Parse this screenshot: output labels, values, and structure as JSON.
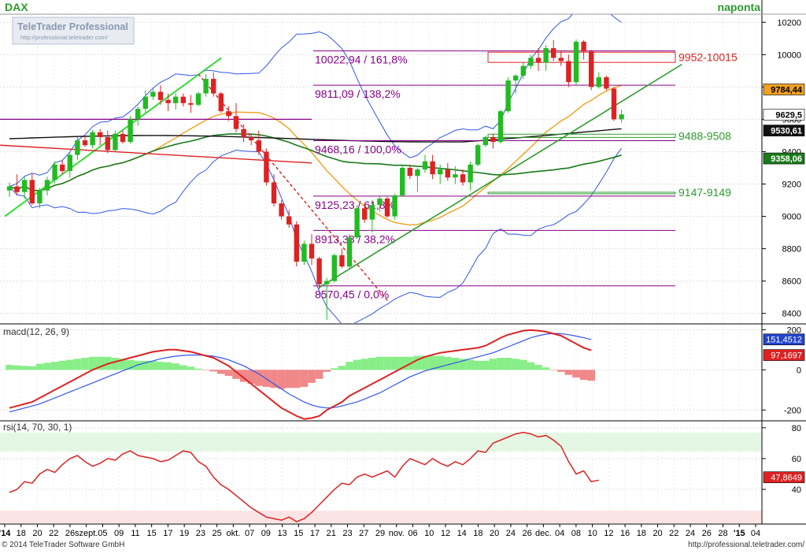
{
  "header": {
    "symbol": "DAX",
    "period": "naponta",
    "logo_brand": "TeleTrader Professional",
    "logo_url": "http://professional.teletrader.com/"
  },
  "footer": {
    "copyright": "© 2014 TeleTrader Software GmbH",
    "url": "http://professional.teletrader.com/"
  },
  "colors": {
    "candle_up": "#22bb22",
    "candle_down": "#dd2222",
    "bollinger": "#3355ee",
    "ma_short": "#f0a020",
    "ma_mid": "#1a7a1a",
    "ma_long": "#111111",
    "fib": "#880088",
    "uptrend": "#2c9c2c",
    "downtrend": "#dd2222",
    "macd": "#dd2222",
    "macd_signal": "#3355ee",
    "hist_pos": "#88ee88",
    "hist_neg": "#f08888",
    "rsi": "#dd2222"
  },
  "chart_data": [
    {
      "type": "candlestick",
      "title": "DAX",
      "period_label": "naponta",
      "y_ticks": [
        8400,
        8600,
        8800,
        9000,
        9200,
        9400,
        9600,
        9800,
        10000,
        10200
      ],
      "ylim": [
        8340,
        10250
      ],
      "x_tick_labels": [
        "'14",
        "18",
        "20",
        "22",
        "26",
        "szept.",
        "05",
        "09",
        "11",
        "15",
        "17",
        "19",
        "23",
        "25",
        "okt.",
        "07",
        "09",
        "13",
        "15",
        "17",
        "21",
        "23",
        "27",
        "29",
        "nov.",
        "06",
        "10",
        "12",
        "14",
        "18",
        "20",
        "24",
        "26",
        "dec.",
        "04",
        "08",
        "10",
        "12",
        "16",
        "18",
        "20",
        "22",
        "24",
        "26",
        "28",
        "'15",
        "04"
      ],
      "ohlc": [
        [
          9160,
          9210,
          9120,
          9185
        ],
        [
          9185,
          9260,
          9130,
          9150
        ],
        [
          9150,
          9245,
          9110,
          9225
        ],
        [
          9225,
          9265,
          9070,
          9080
        ],
        [
          9080,
          9175,
          9050,
          9160
        ],
        [
          9160,
          9245,
          9130,
          9225
        ],
        [
          9225,
          9340,
          9205,
          9320
        ],
        [
          9320,
          9350,
          9260,
          9280
        ],
        [
          9280,
          9400,
          9240,
          9380
        ],
        [
          9380,
          9490,
          9350,
          9470
        ],
        [
          9470,
          9500,
          9430,
          9440
        ],
        [
          9440,
          9535,
          9420,
          9520
        ],
        [
          9520,
          9540,
          9440,
          9490
        ],
        [
          9490,
          9530,
          9390,
          9410
        ],
        [
          9410,
          9530,
          9400,
          9510
        ],
        [
          9510,
          9530,
          9450,
          9460
        ],
        [
          9460,
          9620,
          9450,
          9600
        ],
        [
          9600,
          9680,
          9560,
          9665
        ],
        [
          9665,
          9780,
          9640,
          9740
        ],
        [
          9740,
          9790,
          9720,
          9770
        ],
        [
          9770,
          9810,
          9690,
          9720
        ],
        [
          9720,
          9760,
          9650,
          9700
        ],
        [
          9700,
          9760,
          9660,
          9740
        ],
        [
          9740,
          9760,
          9680,
          9700
        ],
        [
          9700,
          9750,
          9640,
          9690
        ],
        [
          9690,
          9770,
          9680,
          9760
        ],
        [
          9760,
          9880,
          9740,
          9850
        ],
        [
          9850,
          9890,
          9740,
          9760
        ],
        [
          9760,
          9770,
          9640,
          9650
        ],
        [
          9650,
          9680,
          9590,
          9620
        ],
        [
          9620,
          9700,
          9520,
          9540
        ],
        [
          9540,
          9570,
          9460,
          9490
        ],
        [
          9490,
          9510,
          9440,
          9470
        ],
        [
          9470,
          9530,
          9380,
          9400
        ],
        [
          9400,
          9420,
          9190,
          9210
        ],
        [
          9210,
          9260,
          9060,
          9080
        ],
        [
          9080,
          9100,
          8980,
          9000
        ],
        [
          9000,
          9040,
          8930,
          8950
        ],
        [
          8950,
          8970,
          8690,
          8720
        ],
        [
          8720,
          8850,
          8700,
          8830
        ],
        [
          8830,
          8890,
          8700,
          8740
        ],
        [
          8740,
          8750,
          8550,
          8580
        ],
        [
          8580,
          8620,
          8360,
          8600
        ],
        [
          8600,
          8770,
          8590,
          8760
        ],
        [
          8760,
          8800,
          8680,
          8690
        ],
        [
          8690,
          8890,
          8670,
          8870
        ],
        [
          8870,
          9070,
          8860,
          9050
        ],
        [
          9050,
          9080,
          8960,
          8980
        ],
        [
          8980,
          9100,
          8900,
          9070
        ],
        [
          9070,
          9130,
          9030,
          9110
        ],
        [
          9110,
          9120,
          8990,
          9000
        ],
        [
          9000,
          9140,
          8980,
          9130
        ],
        [
          9130,
          9310,
          9120,
          9300
        ],
        [
          9300,
          9320,
          9230,
          9250
        ],
        [
          9250,
          9300,
          9150,
          9290
        ],
        [
          9290,
          9380,
          9270,
          9340
        ],
        [
          9340,
          9380,
          9230,
          9260
        ],
        [
          9260,
          9320,
          9200,
          9290
        ],
        [
          9290,
          9330,
          9220,
          9240
        ],
        [
          9240,
          9310,
          9200,
          9260
        ],
        [
          9260,
          9290,
          9190,
          9210
        ],
        [
          9210,
          9340,
          9160,
          9320
        ],
        [
          9320,
          9450,
          9310,
          9440
        ],
        [
          9440,
          9500,
          9430,
          9490
        ],
        [
          9490,
          9510,
          9420,
          9460
        ],
        [
          9460,
          9660,
          9450,
          9650
        ],
        [
          9650,
          9860,
          9640,
          9840
        ],
        [
          9840,
          9880,
          9760,
          9870
        ],
        [
          9870,
          9950,
          9850,
          9930
        ],
        [
          9930,
          10000,
          9910,
          9980
        ],
        [
          9980,
          10040,
          9900,
          9950
        ],
        [
          9950,
          10060,
          9900,
          10040
        ],
        [
          10040,
          10090,
          9960,
          9980
        ],
        [
          9980,
          10020,
          9930,
          9960
        ],
        [
          9960,
          10000,
          9800,
          9830
        ],
        [
          9830,
          10093,
          9810,
          10080
        ],
        [
          10080,
          10090,
          9970,
          10020
        ],
        [
          10020,
          10030,
          9780,
          9800
        ],
        [
          9800,
          9890,
          9790,
          9860
        ],
        [
          9860,
          9870,
          9780,
          9790
        ],
        [
          9790,
          9800,
          9590,
          9600
        ],
        [
          9600,
          9660,
          9580,
          9630
        ]
      ],
      "fib_levels": [
        {
          "label": "10022,94 / 161,8%",
          "value": 10022.94
        },
        {
          "label": "9811,09 / 138,2%",
          "value": 9811.09
        },
        {
          "label": "9468,16 / 100,0%",
          "value": 9468.16
        },
        {
          "label": "9125,23 / 61,8%",
          "value": 9125.23
        },
        {
          "label": "8913,38 / 38,2%",
          "value": 8913.38
        },
        {
          "label": "8570,45 / 0,0%",
          "value": 8570.45
        }
      ],
      "zones": [
        {
          "label": "9952-10015",
          "low": 9952,
          "high": 10015,
          "color": "#dd2222"
        },
        {
          "label": "9488-9508",
          "low": 9488,
          "high": 9508,
          "color": "#2c9c2c"
        },
        {
          "label": "9147-9149",
          "low": 9147,
          "high": 9149,
          "color": "#2c9c2c"
        }
      ],
      "price_tags": [
        {
          "label": "9784,44",
          "value": 9784.44,
          "bg": "#f0a020",
          "fg": "#000000"
        },
        {
          "label": "9629,5",
          "value": 9629.5,
          "bg": "#ffffff",
          "fg": "#000000"
        },
        {
          "label": "9530,61",
          "value": 9530.61,
          "bg": "#111111",
          "fg": "#ffffff"
        },
        {
          "label": "9358,06",
          "value": 9358.06,
          "bg": "#1a7a1a",
          "fg": "#ffffff"
        }
      ]
    },
    {
      "type": "line",
      "title": "macd(12, 26, 9)",
      "y_ticks": [
        -200,
        0,
        200
      ],
      "ylim": [
        -250,
        225
      ],
      "series": [
        {
          "name": "macd",
          "value_label": "97,1697",
          "last": 97.17
        },
        {
          "name": "signal",
          "value_label": "151,4512",
          "last": 151.45
        }
      ],
      "macd_values": [
        -190,
        -180,
        -170,
        -160,
        -140,
        -120,
        -100,
        -80,
        -60,
        -40,
        -20,
        0,
        15,
        30,
        40,
        50,
        60,
        70,
        80,
        90,
        95,
        100,
        100,
        95,
        90,
        80,
        70,
        60,
        40,
        20,
        -10,
        -40,
        -70,
        -100,
        -130,
        -160,
        -190,
        -210,
        -230,
        -245,
        -240,
        -230,
        -200,
        -180,
        -160,
        -130,
        -110,
        -90,
        -70,
        -50,
        -30,
        -10,
        10,
        30,
        50,
        65,
        75,
        85,
        90,
        95,
        100,
        105,
        110,
        120,
        140,
        160,
        175,
        185,
        195,
        198,
        195,
        190,
        180,
        170,
        150,
        130,
        110,
        97
      ],
      "signal_values": [
        -210,
        -200,
        -190,
        -180,
        -170,
        -155,
        -140,
        -125,
        -110,
        -95,
        -80,
        -65,
        -50,
        -35,
        -20,
        -5,
        10,
        25,
        35,
        45,
        55,
        62,
        68,
        72,
        74,
        74,
        72,
        68,
        60,
        50,
        35,
        20,
        0,
        -20,
        -45,
        -70,
        -95,
        -120,
        -140,
        -160,
        -175,
        -185,
        -190,
        -188,
        -180,
        -170,
        -160,
        -145,
        -130,
        -115,
        -95,
        -75,
        -55,
        -35,
        -20,
        -5,
        5,
        15,
        25,
        35,
        45,
        55,
        65,
        75,
        85,
        100,
        115,
        130,
        145,
        160,
        170,
        178,
        182,
        180,
        175,
        168,
        160,
        151
      ],
      "histogram": [
        25,
        22,
        20,
        18,
        30,
        35,
        40,
        45,
        50,
        55,
        60,
        65,
        65,
        65,
        60,
        55,
        50,
        45,
        45,
        45,
        40,
        38,
        32,
        23,
        16,
        6,
        -2,
        -8,
        -20,
        -30,
        -45,
        -60,
        -70,
        -80,
        -85,
        -90,
        -95,
        -90,
        -90,
        -85,
        -65,
        -45,
        -10,
        8,
        20,
        40,
        50,
        55,
        60,
        65,
        65,
        65,
        65,
        65,
        70,
        70,
        70,
        70,
        65,
        60,
        55,
        50,
        45,
        45,
        55,
        60,
        60,
        55,
        50,
        38,
        25,
        12,
        -2,
        -10,
        -25,
        -38,
        -50,
        -54
      ]
    },
    {
      "type": "line",
      "title": "rsi(14, 70, 30, 1)",
      "y_ticks": [
        40,
        60,
        80
      ],
      "ylim": [
        18,
        84
      ],
      "bands": [
        30,
        70
      ],
      "series": [
        {
          "name": "rsi",
          "value_label": "47,8649",
          "last": 47.86
        }
      ],
      "values": [
        38,
        40,
        45,
        44,
        50,
        53,
        51,
        56,
        60,
        62,
        58,
        55,
        57,
        60,
        59,
        63,
        65,
        62,
        61,
        60,
        58,
        59,
        62,
        65,
        64,
        58,
        55,
        48,
        43,
        40,
        36,
        32,
        28,
        25,
        22,
        21,
        20,
        22,
        19,
        21,
        25,
        30,
        35,
        40,
        44,
        43,
        48,
        50,
        48,
        50,
        52,
        48,
        55,
        60,
        58,
        56,
        60,
        57,
        55,
        58,
        56,
        60,
        65,
        64,
        70,
        72,
        74,
        76,
        77,
        76,
        74,
        75,
        72,
        68,
        58,
        50,
        52,
        45,
        46
      ]
    }
  ]
}
